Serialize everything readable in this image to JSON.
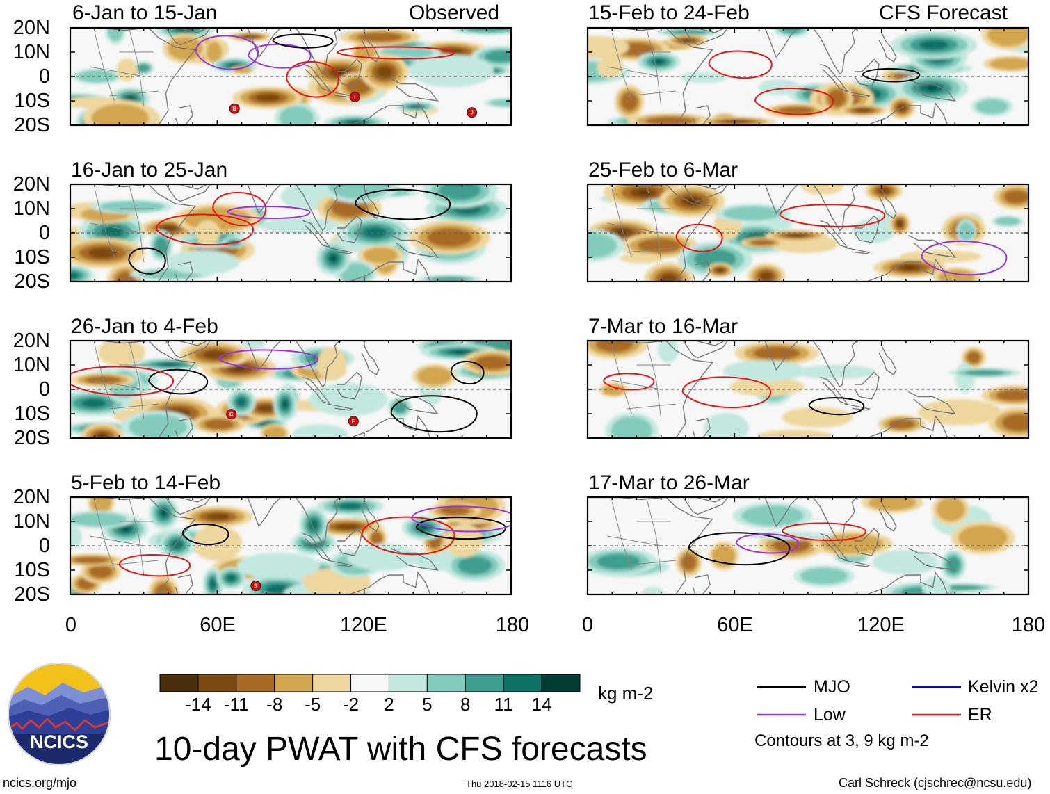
{
  "figure": {
    "title": "10-day PWAT with CFS forecasts",
    "units": "kg m-2",
    "source_url": "ncics.org/mjo",
    "timestamp": "Thu 2018-02-15 1116 UTC",
    "author": "Carl Schreck (cjschrec@ncsu.edu)",
    "logo_text": "NCICS"
  },
  "column_headers": {
    "observed": "Observed",
    "forecast": "CFS Forecast"
  },
  "panels": {
    "left": [
      {
        "period": "6-Jan to 15-Jan"
      },
      {
        "period": "16-Jan to 25-Jan"
      },
      {
        "period": "26-Jan to 4-Feb"
      },
      {
        "period": "5-Feb to 14-Feb"
      }
    ],
    "right": [
      {
        "period": "15-Feb to 24-Feb"
      },
      {
        "period": "25-Feb to 6-Mar"
      },
      {
        "period": "7-Mar to 16-Mar"
      },
      {
        "period": "17-Mar to 26-Mar"
      }
    ]
  },
  "axes": {
    "lat_labels": [
      "20N",
      "10N",
      "0",
      "10S",
      "20S"
    ],
    "lon_labels": [
      "0",
      "60E",
      "120E",
      "180"
    ]
  },
  "colorbar": {
    "labels": [
      "-14",
      "-11",
      "-8",
      "-5",
      "-2",
      "2",
      "5",
      "8",
      "11",
      "14"
    ],
    "colors": [
      "#4a2d0a",
      "#7a4a10",
      "#a86a25",
      "#d2a64f",
      "#eed79e",
      "#f7f7f7",
      "#c3e8e0",
      "#82cbbd",
      "#3f9e8f",
      "#0e7266",
      "#043d33"
    ]
  },
  "legend": {
    "items": [
      {
        "label": "MJO",
        "color": "#000000"
      },
      {
        "label": "Kelvin x2",
        "color": "#0000ff"
      },
      {
        "label": "Low",
        "color": "#9933dd"
      },
      {
        "label": "ER",
        "color": "#ee1111"
      }
    ],
    "note": "Contours at 3, 9 kg m-2"
  },
  "storm_markers": {
    "left": [
      [
        "B",
        "I",
        "J"
      ],
      [],
      [
        "C",
        "F"
      ],
      [
        "S"
      ]
    ],
    "right": [
      [],
      [],
      [],
      []
    ]
  }
}
